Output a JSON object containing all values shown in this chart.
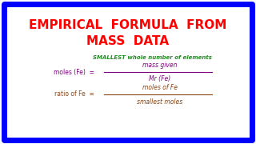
{
  "title_line1": "EMPIRICAL  FORMULA  FROM",
  "title_line2": "MASS  DATA",
  "title_color": "#ff0000",
  "bg_color": "#ffffff",
  "border_color": "#0000ff",
  "smallest_label": "SMALLEST whole number of elements",
  "smallest_color": "#228B22",
  "moles_label": "moles (Fe)  =",
  "moles_color": "#800080",
  "moles_numerator": "mass given",
  "moles_denominator": "Mr (Fe)",
  "frac1_color": "#800080",
  "ratio_label": "ratio of Fe  =",
  "ratio_color": "#8B4513",
  "ratio_numerator": "moles of Fe",
  "ratio_denominator": "smallest moles"
}
